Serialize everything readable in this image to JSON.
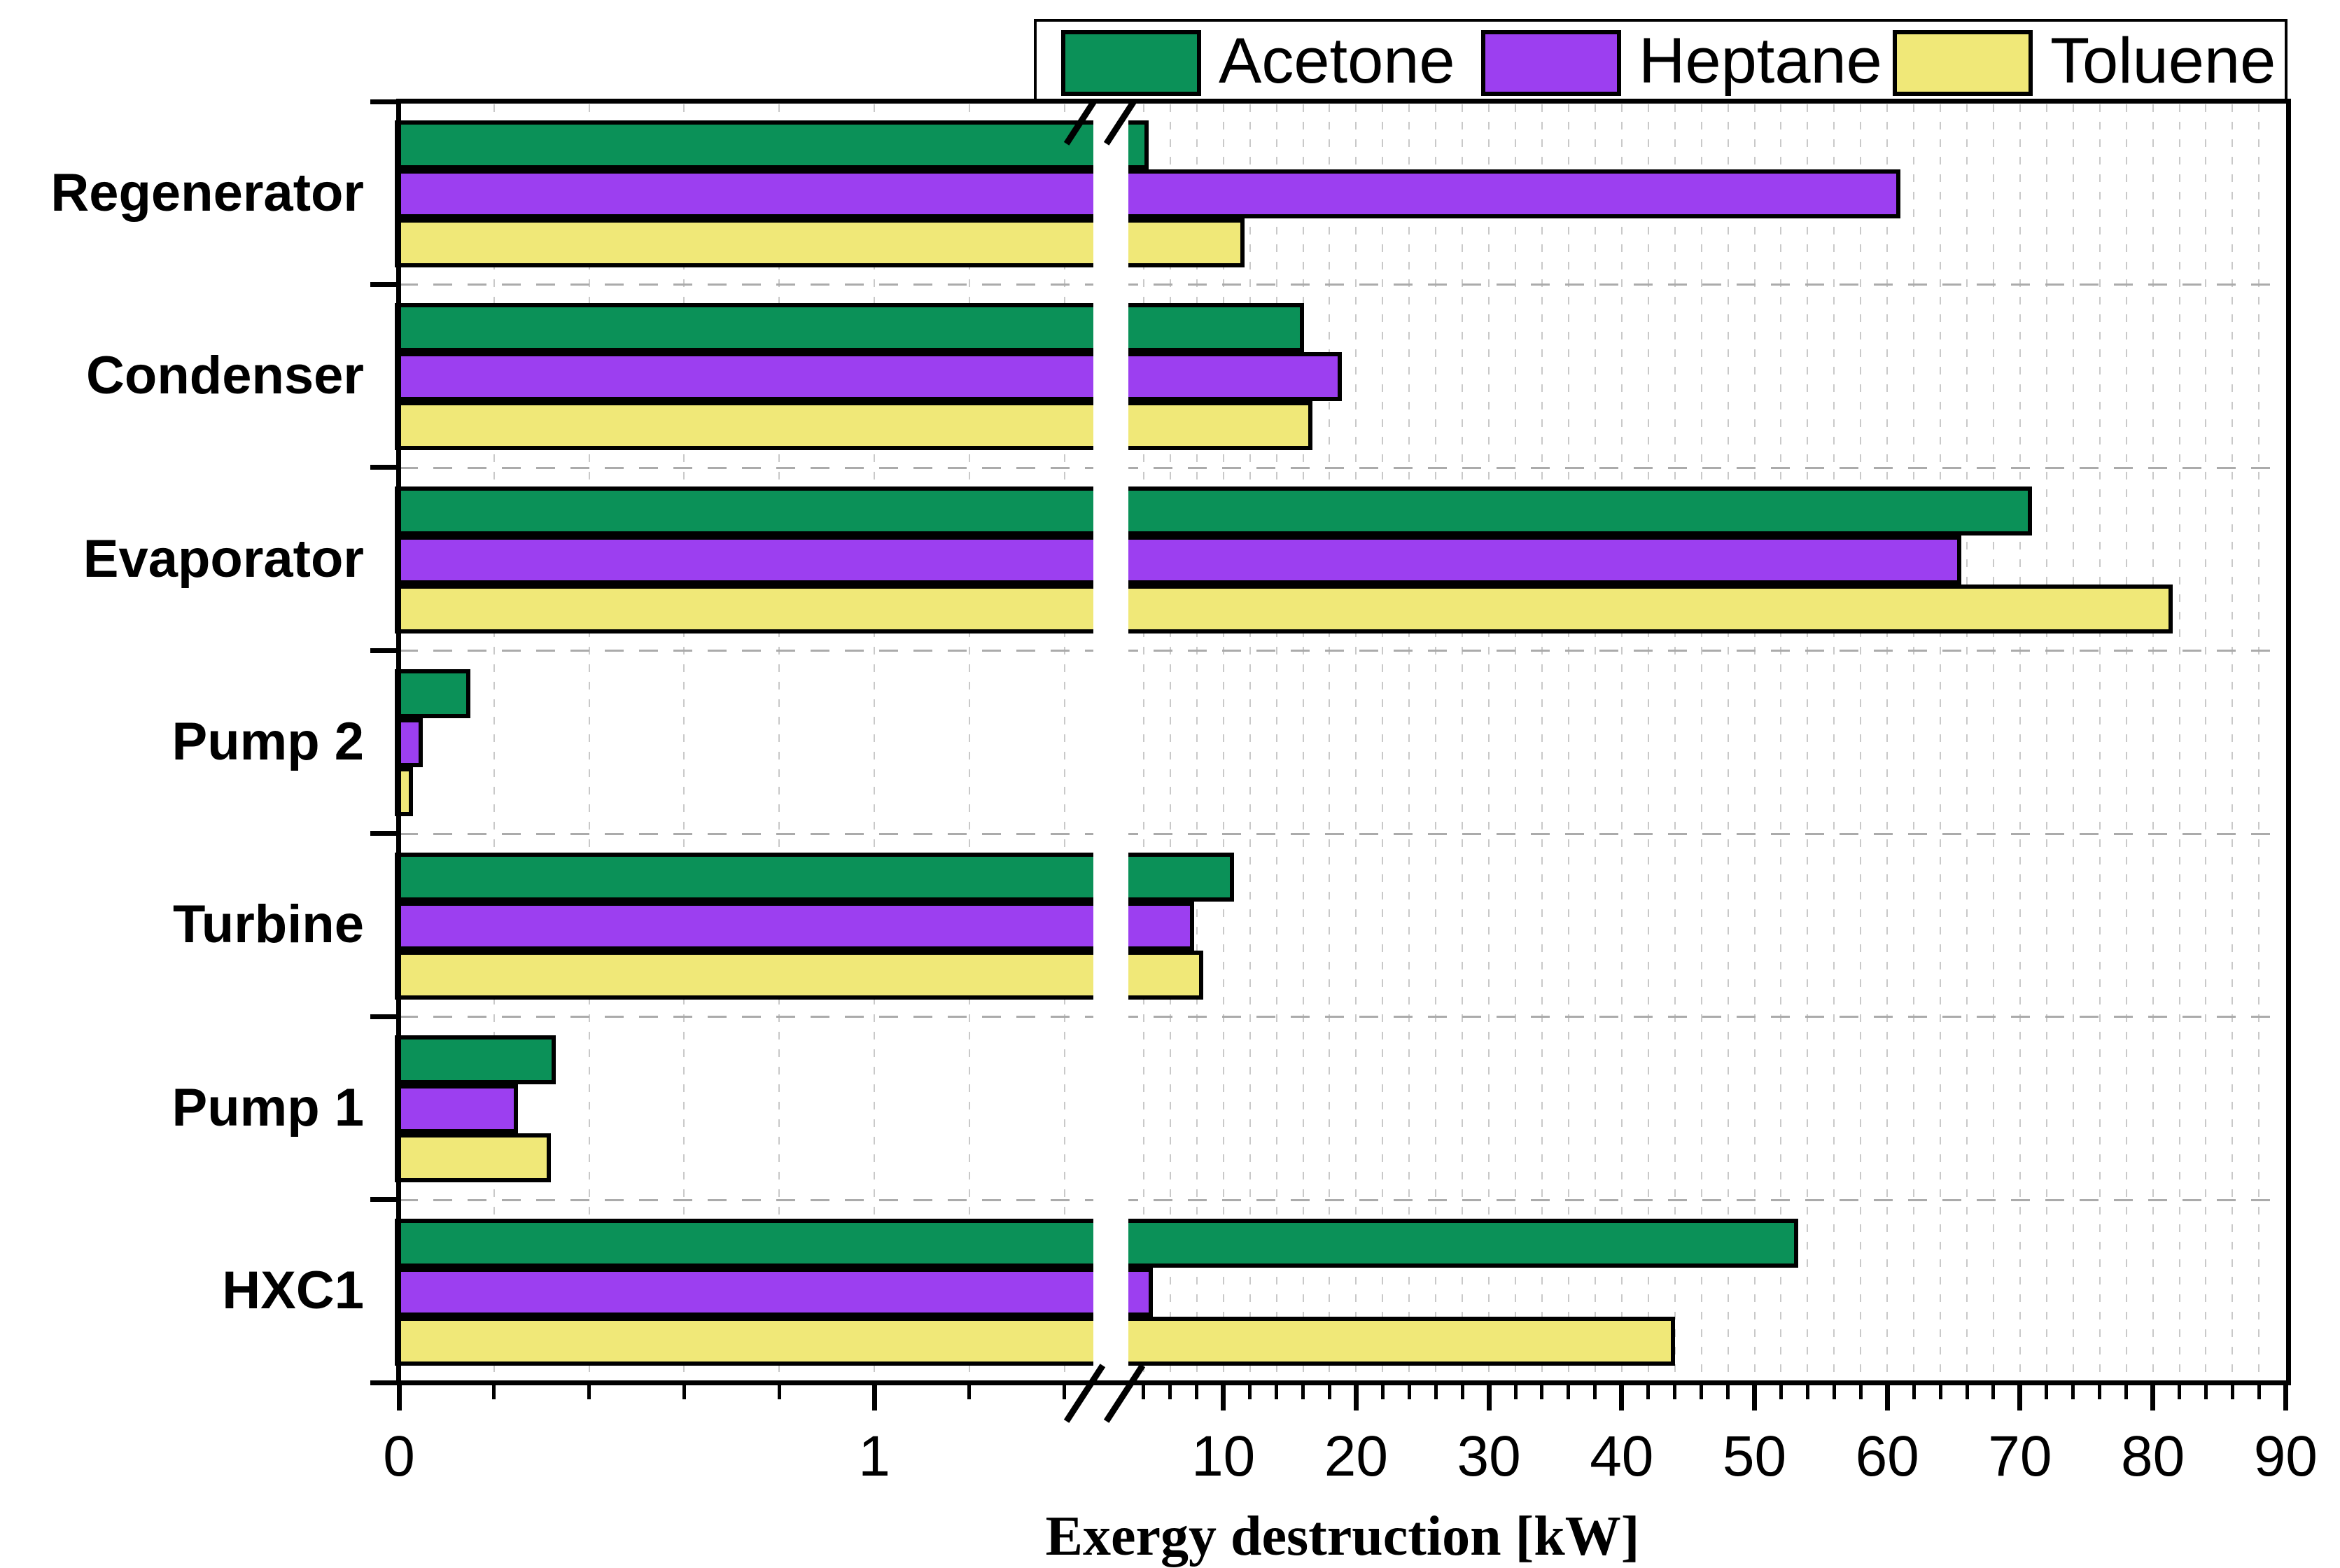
{
  "chart_data": {
    "type": "bar",
    "orientation": "horizontal",
    "title": "",
    "xlabel": "Exergy destruction [kW]",
    "ylabel": "",
    "categories": [
      "Regenerator",
      "Condenser",
      "Evaporator",
      "Pump 2",
      "Turbine",
      "Pump 1",
      "HXC1"
    ],
    "series": [
      {
        "name": "Acetone",
        "color": "#0b9158",
        "values": [
          4.4,
          16.1,
          70.9,
          0.15,
          10.8,
          0.33,
          53.3
        ]
      },
      {
        "name": "Heptane",
        "color": "#9c3ff0",
        "values": [
          61.0,
          18.9,
          65.6,
          0.05,
          7.8,
          0.25,
          4.7
        ]
      },
      {
        "name": "Toluene",
        "color": "#f0e878",
        "values": [
          11.6,
          16.7,
          81.5,
          0.03,
          8.5,
          0.32,
          44.0
        ]
      }
    ],
    "x_axis": {
      "broken": true,
      "break_between": [
        1.46,
        2.85
      ],
      "left_ticks": [
        0,
        1
      ],
      "left_minor_step": 0.2,
      "right_ticks": [
        10,
        20,
        30,
        40,
        50,
        60,
        70,
        80,
        90
      ],
      "right_minor_step": 2,
      "xlim": [
        0,
        90
      ],
      "unit": "kW"
    },
    "grid": "dashed-minor-vertical, dashed-group-horizontal",
    "legend_position": "top-right",
    "bar_outline_color": "#000000"
  }
}
